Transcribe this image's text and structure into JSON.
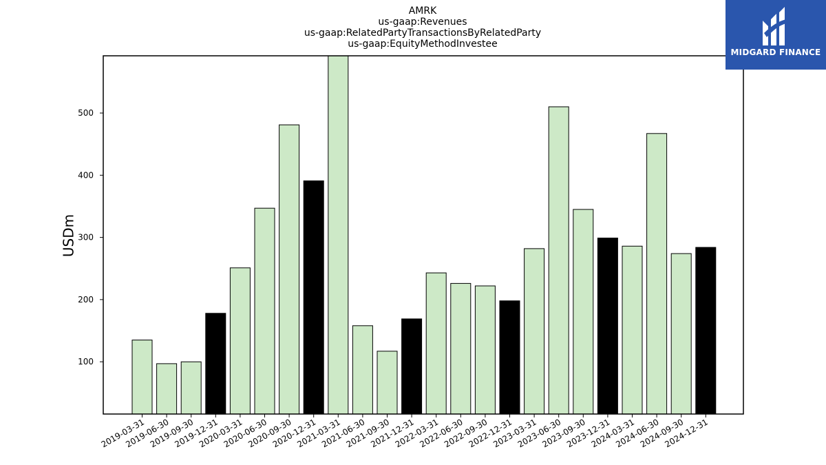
{
  "logo": {
    "text": "MIDGARD FINANCE"
  },
  "colors": {
    "normal": "#cde9c7",
    "highlight": "#000000",
    "edge": "#000000",
    "logo_bg": "#2a56ad"
  },
  "chart_data": {
    "type": "bar",
    "title": [
      "AMRK",
      "us-gaap:Revenues",
      "us-gaap:RelatedPartyTransactionsByRelatedParty",
      "us-gaap:EquityMethodInvestee"
    ],
    "xlabel": "",
    "ylabel": "USDm",
    "ylim": [
      16,
      592
    ],
    "yticks": [
      100,
      200,
      300,
      400,
      500
    ],
    "grid": false,
    "categories": [
      "2019-03-31",
      "2019-06-30",
      "2019-09-30",
      "2019-12-31",
      "2020-03-31",
      "2020-06-30",
      "2020-09-30",
      "2020-12-31",
      "2021-03-31",
      "2021-06-30",
      "2021-09-30",
      "2021-12-31",
      "2022-03-31",
      "2022-06-30",
      "2022-09-30",
      "2022-12-31",
      "2023-03-31",
      "2023-06-30",
      "2023-09-30",
      "2023-12-31",
      "2024-03-31",
      "2024-06-30",
      "2024-09-30",
      "2024-12-31"
    ],
    "values": [
      135,
      97,
      100,
      178,
      251,
      347,
      481,
      391,
      592,
      158,
      117,
      169,
      243,
      226,
      222,
      198,
      282,
      510,
      345,
      299,
      286,
      467,
      274,
      284
    ],
    "highlight": [
      false,
      false,
      false,
      true,
      false,
      false,
      false,
      true,
      false,
      false,
      false,
      true,
      false,
      false,
      false,
      true,
      false,
      false,
      false,
      true,
      false,
      false,
      false,
      true
    ]
  }
}
